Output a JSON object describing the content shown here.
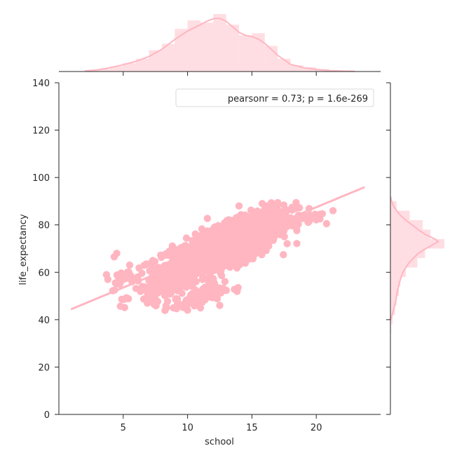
{
  "chart_data": {
    "type": "scatter",
    "subtype": "jointplot-regression",
    "xlabel": "school",
    "ylabel": "life_expectancy",
    "xlim": [
      0,
      25
    ],
    "ylim": [
      0,
      140
    ],
    "xticks": [
      5,
      10,
      15,
      20
    ],
    "yticks": [
      0,
      20,
      40,
      60,
      80,
      100,
      120,
      140
    ],
    "grid": false,
    "legend": {
      "text": "pearsonr = 0.73; p = 1.6e-269",
      "placement": "top-right"
    },
    "color": "#ffb6c1",
    "regression_line": {
      "x": [
        1,
        23.7
      ],
      "y": [
        44.5,
        95.8
      ]
    },
    "scatter_clusters": [
      {
        "cx": 12.5,
        "cy": 69.5,
        "sx": 2.2,
        "sy": 5.5,
        "n": 900
      },
      {
        "cx": 14.5,
        "cy": 76,
        "sx": 1.5,
        "sy": 4.5,
        "n": 350
      },
      {
        "cx": 9,
        "cy": 58,
        "sx": 1.6,
        "sy": 5,
        "n": 250
      },
      {
        "cx": 10.5,
        "cy": 48.5,
        "sx": 1.2,
        "sy": 2.2,
        "n": 90
      },
      {
        "cx": 16,
        "cy": 83,
        "sx": 1.2,
        "sy": 3,
        "n": 90
      },
      {
        "cx": 19,
        "cy": 82,
        "sx": 1,
        "sy": 1.8,
        "n": 30
      },
      {
        "cx": 5,
        "cy": 58,
        "sx": 0.6,
        "sy": 2.5,
        "n": 20
      }
    ],
    "scatter_extra_points": [
      [
        4.5,
        68
      ],
      [
        4.3,
        66.5
      ],
      [
        3.7,
        59
      ],
      [
        3.8,
        57
      ],
      [
        5.5,
        63
      ],
      [
        6.8,
        63.5
      ],
      [
        8.6,
        69
      ],
      [
        7.3,
        65
      ],
      [
        14,
        88
      ],
      [
        15.8,
        89
      ],
      [
        16.6,
        89
      ],
      [
        16.2,
        88
      ],
      [
        20.3,
        84.5
      ],
      [
        21.3,
        86
      ],
      [
        20.8,
        80.5
      ],
      [
        18.5,
        79.5
      ],
      [
        17.3,
        77.5
      ],
      [
        11,
        45
      ],
      [
        10,
        44
      ],
      [
        12.5,
        46
      ],
      [
        9.5,
        45.5
      ],
      [
        18,
        83
      ],
      [
        19.5,
        84
      ]
    ],
    "x_marginal": {
      "bins": [
        2.5,
        3.5,
        4.5,
        5.5,
        6.5,
        7.5,
        8.5,
        9.5,
        10.5,
        11.5,
        12.5,
        13.5,
        14.5,
        15.5,
        16.5,
        17.5,
        18.5,
        19.5,
        20.5,
        21.5
      ],
      "density": [
        0.003,
        0.006,
        0.012,
        0.02,
        0.03,
        0.05,
        0.065,
        0.1,
        0.12,
        0.115,
        0.135,
        0.11,
        0.085,
        0.09,
        0.06,
        0.03,
        0.015,
        0.01,
        0.006,
        0.003
      ],
      "kde_x": [
        2,
        3,
        4,
        5,
        6,
        7,
        8,
        9,
        10,
        11,
        11.5,
        12,
        12.5,
        13,
        14,
        14.5,
        15,
        15.5,
        16,
        17,
        18,
        19,
        20,
        21,
        22,
        23
      ],
      "kde_y": [
        0.001,
        0.004,
        0.009,
        0.016,
        0.024,
        0.035,
        0.052,
        0.075,
        0.095,
        0.11,
        0.118,
        0.124,
        0.125,
        0.118,
        0.092,
        0.085,
        0.082,
        0.076,
        0.066,
        0.038,
        0.017,
        0.009,
        0.005,
        0.002,
        0.001,
        0.0004
      ],
      "ymax": 0.135
    },
    "y_marginal": {
      "bins": [
        36,
        40,
        44,
        48,
        52,
        56,
        60,
        64,
        68,
        72,
        76,
        80,
        84,
        88
      ],
      "density": [
        0.001,
        0.003,
        0.006,
        0.008,
        0.011,
        0.013,
        0.02,
        0.035,
        0.045,
        0.07,
        0.052,
        0.042,
        0.025,
        0.008
      ],
      "kde_y": [
        40,
        44,
        48,
        52,
        56,
        60,
        64,
        68,
        70,
        72,
        73,
        74,
        76,
        78,
        80,
        82,
        84,
        86,
        88,
        90,
        92
      ],
      "kde_x": [
        0.0005,
        0.004,
        0.007,
        0.009,
        0.012,
        0.016,
        0.024,
        0.036,
        0.046,
        0.057,
        0.062,
        0.058,
        0.045,
        0.036,
        0.028,
        0.02,
        0.013,
        0.008,
        0.004,
        0.0015,
        0.0003
      ],
      "xmax": 0.07
    }
  }
}
